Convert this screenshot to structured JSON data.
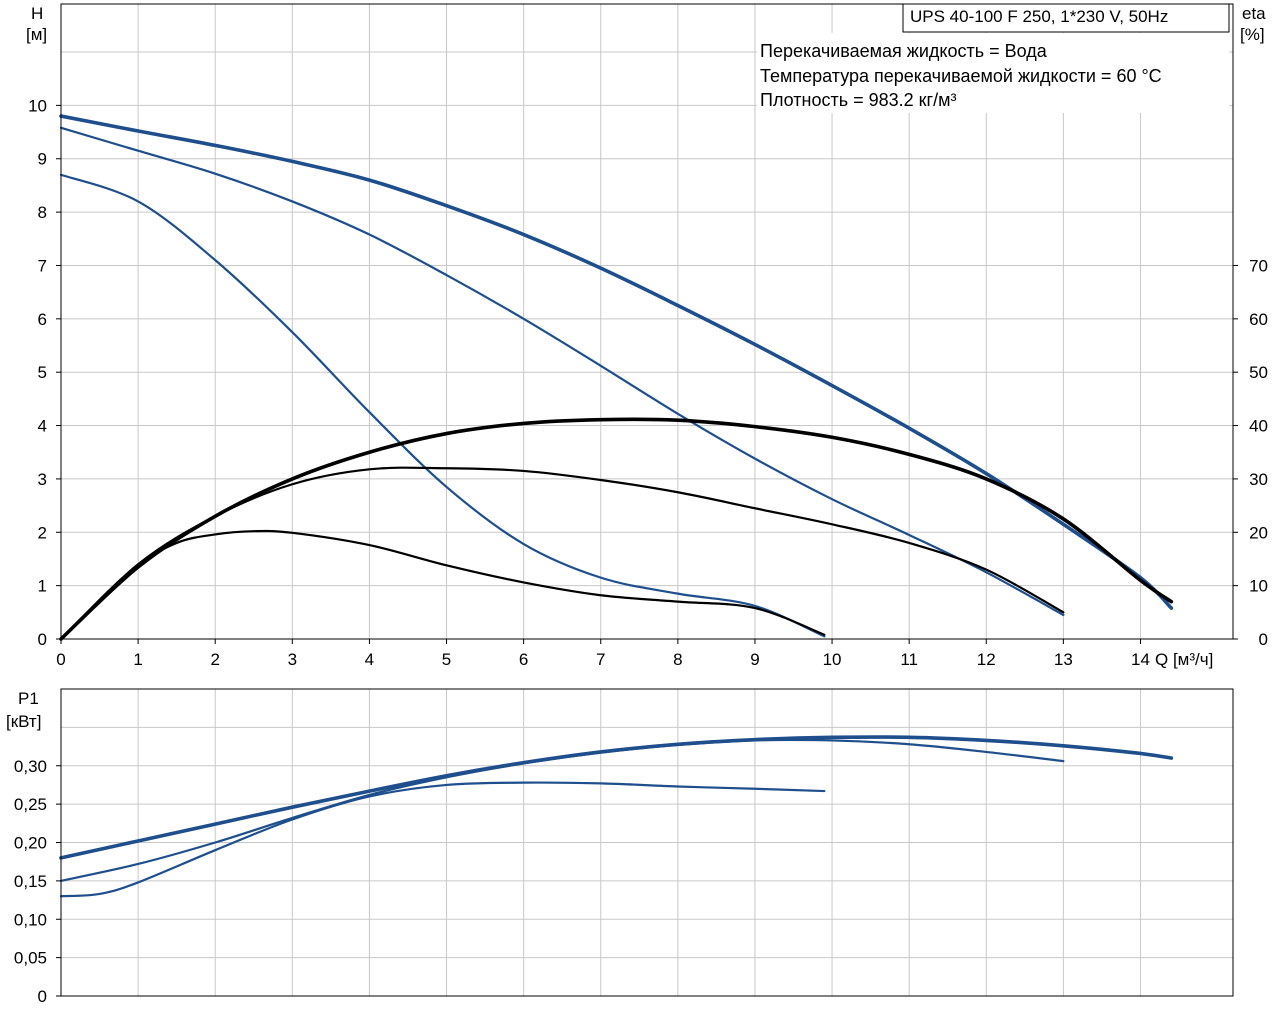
{
  "chart_data": [
    {
      "type": "line",
      "title": "UPS 40-100 F 250, 1*230 V, 50Hz",
      "info_lines": [
        "Перекачиваемая жидкость = Вода",
        "Температура перекачиваемой жидкости = 60 °C",
        "Плотность = 983.2 кг/м³"
      ],
      "xlabel": "Q [м³/ч]",
      "ylabel_left": [
        "H",
        "[м]"
      ],
      "ylabel_right": [
        "eta",
        "[%]"
      ],
      "xlim": [
        0,
        15.2
      ],
      "ylim_left": [
        0,
        11.9
      ],
      "ylim_right": [
        0,
        119
      ],
      "x_ticks": [
        "0",
        "1",
        "2",
        "3",
        "4",
        "5",
        "6",
        "7",
        "8",
        "9",
        "10",
        "11",
        "12",
        "13",
        "14"
      ],
      "y_ticks_left": [
        "0",
        "1",
        "2",
        "3",
        "4",
        "5",
        "6",
        "7",
        "8",
        "9",
        "10"
      ],
      "y_ticks_right": [
        "0",
        "10",
        "20",
        "30",
        "40",
        "50",
        "60",
        "70"
      ],
      "grid": true,
      "series": [
        {
          "axis": "H",
          "color": "#1f4e8c",
          "width": 3.6,
          "x": [
            0,
            1,
            2,
            3,
            4,
            5,
            6,
            7,
            8,
            9,
            10,
            11,
            12,
            13,
            14,
            14.4
          ],
          "y": [
            9.8,
            9.52,
            9.25,
            8.95,
            8.6,
            8.12,
            7.58,
            6.95,
            6.25,
            5.52,
            4.75,
            3.95,
            3.1,
            2.15,
            1.15,
            0.58
          ]
        },
        {
          "axis": "H",
          "color": "#1f4e8c",
          "width": 2.2,
          "x": [
            0,
            1,
            2,
            3,
            4,
            5,
            6,
            7,
            8,
            9,
            10,
            11,
            12,
            13
          ],
          "y": [
            9.58,
            9.15,
            8.72,
            8.2,
            7.58,
            6.82,
            6.0,
            5.12,
            4.22,
            3.38,
            2.62,
            1.95,
            1.25,
            0.45
          ]
        },
        {
          "axis": "H",
          "color": "#1f4e8c",
          "width": 2.2,
          "x": [
            0,
            1,
            2,
            3,
            4,
            5,
            6,
            7,
            8,
            9,
            9.9
          ],
          "y": [
            8.7,
            8.2,
            7.1,
            5.75,
            4.25,
            2.85,
            1.78,
            1.15,
            0.85,
            0.62,
            0.05
          ]
        },
        {
          "axis": "eta",
          "color": "#000000",
          "width": 3.6,
          "x": [
            0,
            1,
            2,
            3,
            4,
            5,
            6,
            7,
            8,
            9,
            10,
            11,
            12,
            13,
            14,
            14.4
          ],
          "y": [
            0,
            13.5,
            23.0,
            30.0,
            35.0,
            38.5,
            40.4,
            41.1,
            41.0,
            39.8,
            37.8,
            34.6,
            30.0,
            22.5,
            11.0,
            7.0
          ]
        },
        {
          "axis": "eta",
          "color": "#000000",
          "width": 2.2,
          "x": [
            0,
            1,
            2,
            3,
            4,
            5,
            6,
            7,
            8,
            9,
            10,
            11,
            12,
            13
          ],
          "y": [
            0,
            14.0,
            23.0,
            29.0,
            31.8,
            32.0,
            31.5,
            29.8,
            27.5,
            24.5,
            21.5,
            18.0,
            13.0,
            5.0
          ]
        },
        {
          "axis": "eta",
          "color": "#000000",
          "width": 2.2,
          "x": [
            0,
            1,
            1.5,
            2,
            2.5,
            3,
            4,
            5,
            6,
            7,
            8,
            9,
            9.9
          ],
          "y": [
            0,
            13.5,
            18.0,
            19.6,
            20.2,
            19.9,
            17.6,
            13.8,
            10.6,
            8.2,
            7.0,
            5.8,
            0.8
          ]
        }
      ]
    },
    {
      "type": "line",
      "ylabel": [
        "P1",
        "[кВт]"
      ],
      "xlim": [
        0,
        15.2
      ],
      "ylim": [
        0,
        0.4
      ],
      "y_ticks": [
        "0",
        "0,05",
        "0,10",
        "0,15",
        "0,20",
        "0,25",
        "0,30"
      ],
      "grid": true,
      "series": [
        {
          "color": "#1f4e8c",
          "width": 3.6,
          "x": [
            0,
            1,
            2,
            3,
            4,
            5,
            6,
            7,
            8,
            9,
            10,
            11,
            12,
            13,
            14,
            14.4
          ],
          "y": [
            0.18,
            0.202,
            0.224,
            0.246,
            0.267,
            0.287,
            0.304,
            0.318,
            0.328,
            0.334,
            0.337,
            0.337,
            0.333,
            0.326,
            0.316,
            0.31
          ]
        },
        {
          "color": "#1f4e8c",
          "width": 2.2,
          "x": [
            0,
            1,
            2,
            3,
            4,
            5,
            6,
            7,
            8,
            9,
            10,
            11,
            12,
            13
          ],
          "y": [
            0.15,
            0.172,
            0.2,
            0.232,
            0.262,
            0.285,
            0.303,
            0.317,
            0.327,
            0.333,
            0.333,
            0.328,
            0.318,
            0.306
          ]
        },
        {
          "color": "#1f4e8c",
          "width": 2.2,
          "x": [
            0,
            0.5,
            1,
            2,
            3,
            4,
            5,
            6,
            7,
            8,
            9,
            9.9
          ],
          "y": [
            0.13,
            0.133,
            0.148,
            0.19,
            0.23,
            0.26,
            0.275,
            0.278,
            0.277,
            0.273,
            0.27,
            0.267
          ]
        }
      ]
    }
  ]
}
